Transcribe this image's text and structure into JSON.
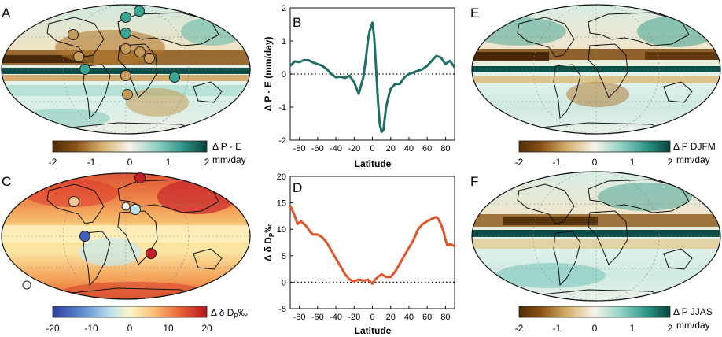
{
  "panels": {
    "A": "A",
    "B": "B",
    "C": "C",
    "D": "D",
    "E": "E",
    "F": "F"
  },
  "colors": {
    "brown_dark": "#5a3206",
    "brown": "#a86a1e",
    "tan": "#e8cf95",
    "neutral": "#f5f1e6",
    "teal_light": "#a9dcd2",
    "teal": "#35a595",
    "teal_dark": "#0b4f48",
    "line_B": "#1f6f67",
    "line_D": "#e2542a",
    "div_blue": "#3f5fbf",
    "div_red": "#c4202a"
  },
  "colorbars": {
    "A": {
      "label1": "Δ P - E",
      "label2": "mm/day",
      "ticks": [
        "-2",
        "-1",
        "0",
        "1",
        "2"
      ]
    },
    "C": {
      "label1": "Δ δ D",
      "label_sub": "P",
      "label_unit": "‰",
      "ticks": [
        "-20",
        "-10",
        "0",
        "10",
        "20"
      ]
    },
    "E": {
      "label1": "Δ P DJFM",
      "label2": "mm/day",
      "ticks": [
        "-2",
        "-1",
        "0",
        "1",
        "2"
      ]
    },
    "F": {
      "label1": "Δ P JJAS",
      "label2": "mm/day",
      "ticks": [
        "-2",
        "-1",
        "0",
        "1",
        "2"
      ]
    }
  },
  "chart_data": [
    {
      "panel": "B",
      "type": "line",
      "xlabel": "Latitude",
      "ylabel": "Δ P - E (mm/day)",
      "xlim": [
        -90,
        90
      ],
      "ylim": [
        -2,
        2
      ],
      "xticks": [
        "-80",
        "-60",
        "-40",
        "-20",
        "0",
        "20",
        "40",
        "60",
        "80"
      ],
      "yticks": [
        "-2",
        "-1",
        "0",
        "1",
        "2"
      ],
      "zero_line": "dotted",
      "x": [
        -90,
        -85,
        -80,
        -75,
        -70,
        -65,
        -60,
        -55,
        -50,
        -45,
        -40,
        -35,
        -30,
        -25,
        -20,
        -15,
        -10,
        -7,
        -5,
        -3,
        0,
        2,
        4,
        6,
        8,
        10,
        12,
        15,
        18,
        20,
        25,
        30,
        35,
        40,
        45,
        50,
        55,
        60,
        65,
        70,
        75,
        80,
        85,
        90
      ],
      "y": [
        0.25,
        0.38,
        0.36,
        0.42,
        0.42,
        0.35,
        0.3,
        0.25,
        0.15,
        0.0,
        -0.1,
        -0.08,
        -0.12,
        -0.05,
        -0.25,
        -0.6,
        -0.1,
        0.5,
        1.0,
        1.3,
        1.55,
        1.1,
        0.2,
        -0.8,
        -1.5,
        -1.75,
        -1.7,
        -1.0,
        -0.65,
        -0.45,
        -0.3,
        -0.3,
        -0.1,
        0.0,
        0.05,
        0.1,
        0.15,
        0.25,
        0.4,
        0.55,
        0.5,
        0.3,
        0.4,
        0.2
      ]
    },
    {
      "panel": "D",
      "type": "line",
      "xlabel": "Latitude",
      "ylabel": "Δ δ D",
      "ylabel_sub": "P",
      "ylabel_unit": "‰",
      "xlim": [
        -90,
        90
      ],
      "ylim": [
        -5,
        20
      ],
      "xticks": [
        "-80",
        "-60",
        "-40",
        "-20",
        "0",
        "20",
        "40",
        "60",
        "80"
      ],
      "yticks": [
        "-5",
        "0",
        "5",
        "10",
        "15",
        "20"
      ],
      "zero_line": "dotted",
      "x": [
        -90,
        -85,
        -82,
        -78,
        -75,
        -72,
        -68,
        -65,
        -60,
        -55,
        -50,
        -45,
        -40,
        -35,
        -30,
        -25,
        -20,
        -15,
        -10,
        -5,
        0,
        3,
        6,
        10,
        15,
        20,
        25,
        30,
        35,
        40,
        45,
        50,
        55,
        60,
        65,
        70,
        72,
        75,
        78,
        80,
        82,
        85,
        88,
        90
      ],
      "y": [
        14.5,
        12.5,
        11.0,
        11.5,
        11.0,
        10.5,
        9.5,
        9.0,
        9.0,
        8.5,
        7.5,
        6.0,
        4.5,
        3.0,
        1.5,
        0.5,
        0.2,
        0.5,
        0.3,
        0.5,
        -0.3,
        0.5,
        1.0,
        1.5,
        1.0,
        1.0,
        2.0,
        3.5,
        5.0,
        6.5,
        8.0,
        10.0,
        11.0,
        11.5,
        12.0,
        12.3,
        12.0,
        11.0,
        9.5,
        8.0,
        7.0,
        7.2,
        7.0,
        6.8
      ]
    }
  ]
}
